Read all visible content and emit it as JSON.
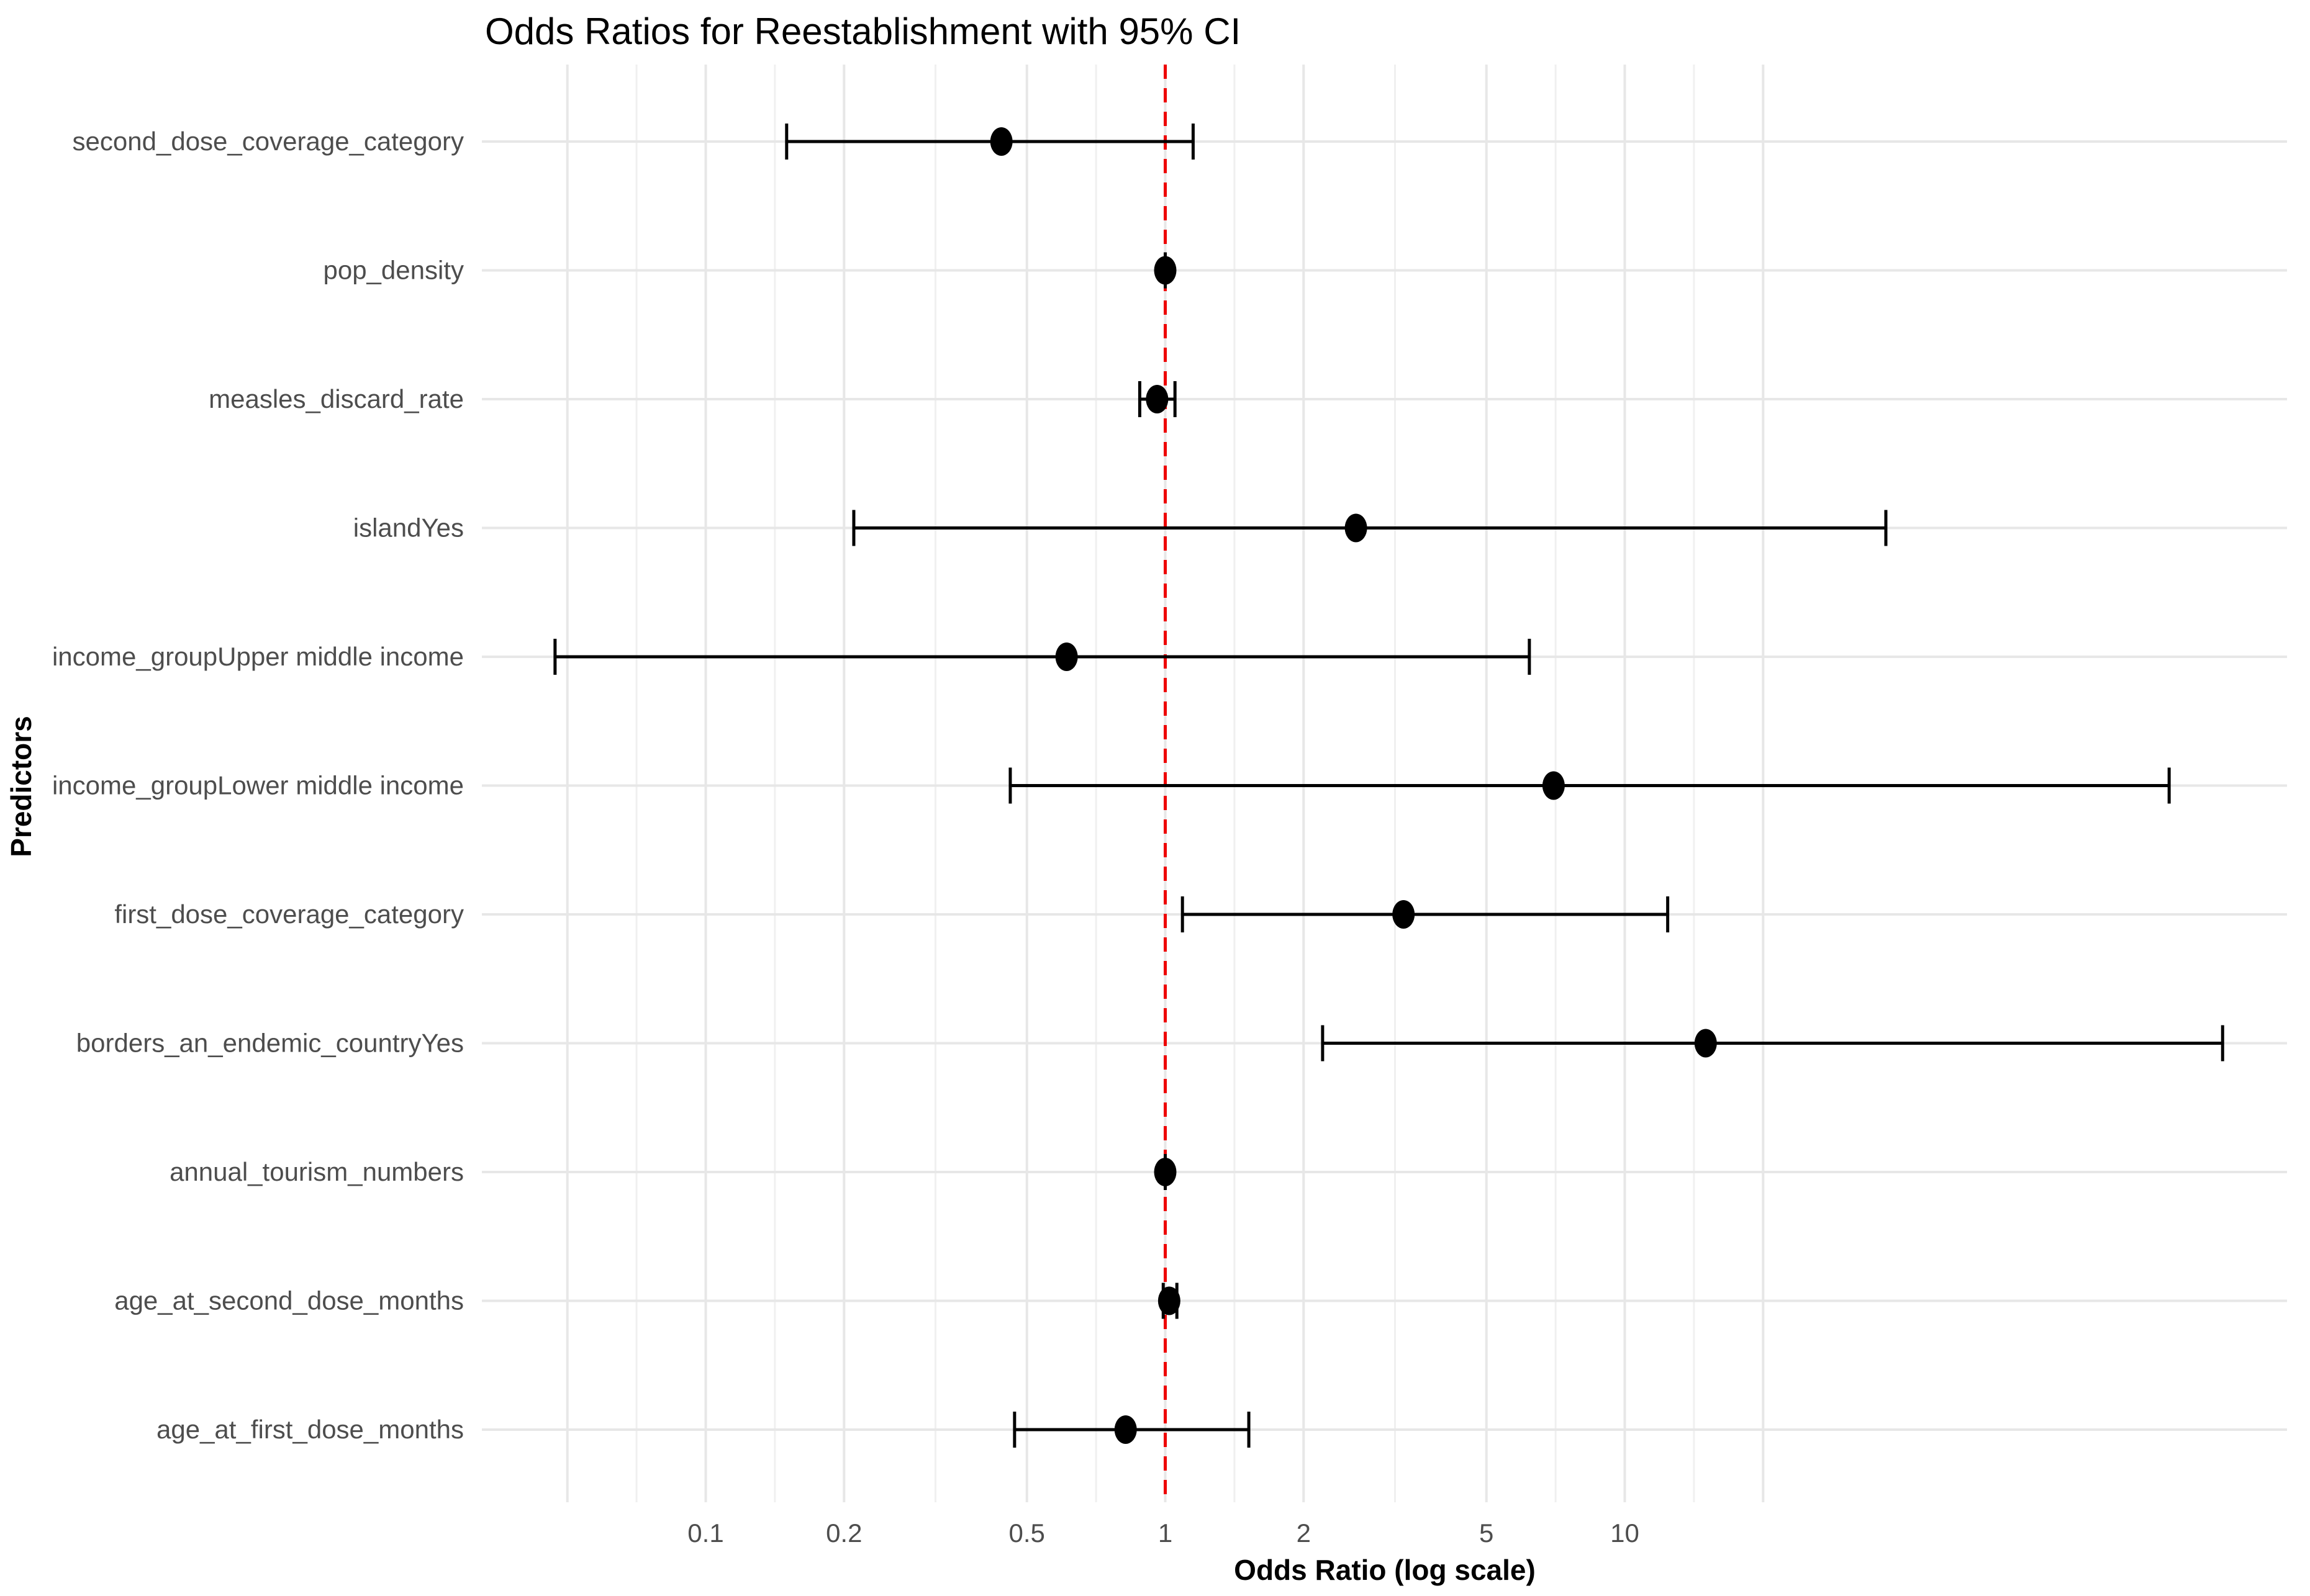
{
  "figure": {
    "title": "Odds Ratios for Reestablishment with 95% CI",
    "x_axis_title": "Odds Ratio (log scale)",
    "y_axis_title": "Predictors"
  },
  "chart_data": {
    "type": "scatter",
    "subtype": "forest-plot-odds-ratios-with-95ci",
    "title": "Odds Ratios for Reestablishment with 95% CI",
    "xlabel": "Odds Ratio (log scale)",
    "ylabel": "Predictors",
    "x_scale": "log10",
    "x_tick_labels": [
      "0.1",
      "0.2",
      "0.5",
      "1",
      "2",
      "5",
      "10"
    ],
    "x_ticks": [
      0.1,
      0.2,
      0.5,
      1,
      2,
      5,
      10
    ],
    "x_range": [
      0.033,
      276
    ],
    "reference_line_x": 1,
    "grid": true,
    "legend": "none",
    "points": [
      {
        "label": "second_dose_coverage_category",
        "or": 0.44,
        "ci_low": 0.15,
        "ci_high": 1.15
      },
      {
        "label": "pop_density",
        "or": 1.0,
        "ci_low": 1.0,
        "ci_high": 1.0
      },
      {
        "label": "measles_discard_rate",
        "or": 0.96,
        "ci_low": 0.88,
        "ci_high": 1.05
      },
      {
        "label": "islandYes",
        "or": 2.6,
        "ci_low": 0.21,
        "ci_high": 37
      },
      {
        "label": "income_groupUpper middle income",
        "or": 0.61,
        "ci_low": 0.047,
        "ci_high": 6.2
      },
      {
        "label": "income_groupLower middle income",
        "or": 7.0,
        "ci_low": 0.46,
        "ci_high": 153
      },
      {
        "label": "first_dose_coverage_category",
        "or": 3.3,
        "ci_low": 1.09,
        "ci_high": 12.4
      },
      {
        "label": "borders_an_endemic_countryYes",
        "or": 15.0,
        "ci_low": 2.2,
        "ci_high": 200
      },
      {
        "label": "annual_tourism_numbers",
        "or": 1.0,
        "ci_low": 1.0,
        "ci_high": 1.0
      },
      {
        "label": "age_at_second_dose_months",
        "or": 1.02,
        "ci_low": 0.99,
        "ci_high": 1.06
      },
      {
        "label": "age_at_first_dose_months",
        "or": 0.82,
        "ci_low": 0.47,
        "ci_high": 1.52
      }
    ],
    "gridlines_major": [
      0.05,
      0.1,
      0.2,
      0.5,
      1,
      2,
      5,
      10,
      20
    ],
    "gridlines_minor": [
      0.0707,
      0.1414,
      0.3162,
      0.7071,
      1.4142,
      3.1623,
      7.0711,
      14.142
    ]
  },
  "style": {
    "background_color": "#FFFFFF",
    "point_color": "#000000",
    "errorbar_color": "#000000",
    "reference_line_color": "#EE0000",
    "gridline_major_color": "#E7E7E7",
    "gridline_minor_color": "#F0F0F0",
    "axis_text_color": "#4D4D4D",
    "title_color": "#000000"
  }
}
